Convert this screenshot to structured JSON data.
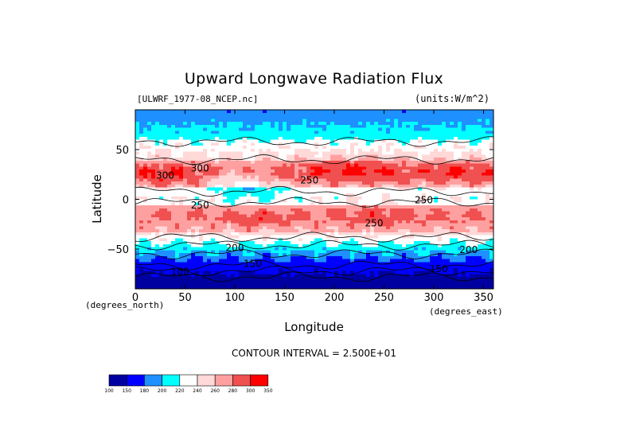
{
  "chart_data": {
    "type": "heatmap",
    "title": "Upward Longwave Radiation Flux",
    "source_label": "[ULWRF_1977-08_NCEP.nc]",
    "units_label": "(units:W/m^2)",
    "xlabel": "Longitude",
    "ylabel": "Latitude",
    "x_unit_label": "(degrees_east)",
    "y_unit_label": "(degrees_north)",
    "xlim": [
      0,
      360
    ],
    "ylim": [
      -90,
      90
    ],
    "x_ticks": [
      0,
      50,
      100,
      150,
      200,
      250,
      300,
      350
    ],
    "y_ticks": [
      -50,
      0,
      50
    ],
    "contour_interval_text": "CONTOUR INTERVAL = 2.500E+01",
    "colorbar": {
      "levels": [
        100,
        150,
        180,
        200,
        220,
        240,
        260,
        280,
        300,
        350
      ],
      "colors": [
        "#0000a0",
        "#0000ff",
        "#1e90ff",
        "#00ffff",
        "#ffffff",
        "#ffd8d8",
        "#ffa0a0",
        "#f05050",
        "#ff0000"
      ]
    },
    "contour_labels": [
      {
        "text": "100",
        "lon": 45,
        "lat": -76
      },
      {
        "text": "150",
        "lon": 118,
        "lat": -68
      },
      {
        "text": "200",
        "lon": 100,
        "lat": -52
      },
      {
        "text": "200",
        "lon": 335,
        "lat": -54
      },
      {
        "text": "150",
        "lon": 305,
        "lat": -73
      },
      {
        "text": "250",
        "lon": 65,
        "lat": -9
      },
      {
        "text": "250",
        "lon": 240,
        "lat": -27
      },
      {
        "text": "250",
        "lon": 175,
        "lat": 16
      },
      {
        "text": "250",
        "lon": 290,
        "lat": -4
      },
      {
        "text": "300",
        "lon": 30,
        "lat": 21
      },
      {
        "text": "300",
        "lon": 65,
        "lat": 28
      }
    ],
    "bands": [
      {
        "lat_range": [
          65,
          90
        ],
        "approx_value": 215
      },
      {
        "lat_range": [
          40,
          65
        ],
        "approx_value": 240
      },
      {
        "lat_range": [
          15,
          40
        ],
        "approx_value": 285
      },
      {
        "lat_range": [
          -5,
          15
        ],
        "approx_value": 225
      },
      {
        "lat_range": [
          -30,
          -5
        ],
        "approx_value": 280
      },
      {
        "lat_range": [
          -45,
          -30
        ],
        "approx_value": 250
      },
      {
        "lat_range": [
          -60,
          -45
        ],
        "approx_value": 205
      },
      {
        "lat_range": [
          -90,
          -60
        ],
        "approx_value": 160
      }
    ]
  }
}
